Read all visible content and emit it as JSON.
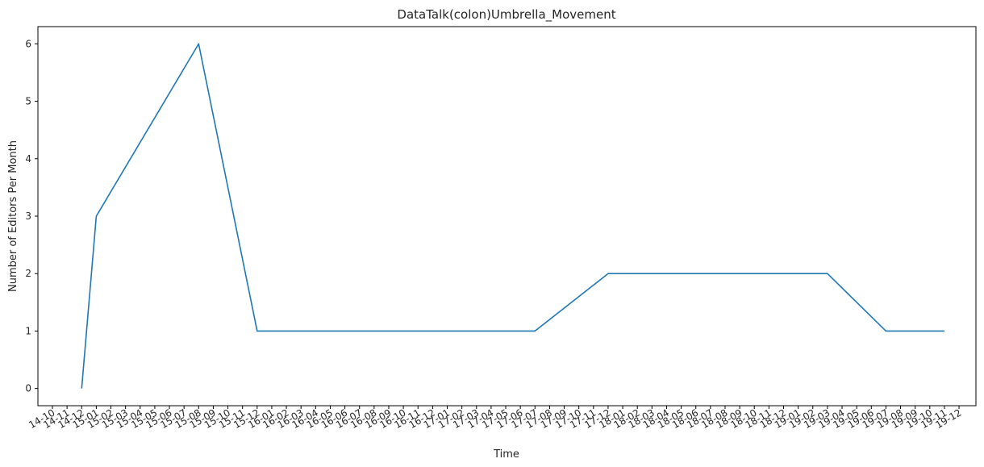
{
  "chart_data": {
    "type": "line",
    "title": "DataTalk(colon)Umbrella_Movement",
    "xlabel": "Time",
    "ylabel": "Number of Editors Per Month",
    "ylim": [
      -0.3,
      6.3
    ],
    "yticks": [
      0,
      1,
      2,
      3,
      4,
      5,
      6
    ],
    "x_tick_labels": [
      "14-10",
      "14-11",
      "14-12",
      "15-01",
      "15-02",
      "15-03",
      "15-04",
      "15-05",
      "15-06",
      "15-07",
      "15-08",
      "15-09",
      "15-10",
      "15-11",
      "15-12",
      "16-01",
      "16-02",
      "16-03",
      "16-04",
      "16-05",
      "16-06",
      "16-07",
      "16-08",
      "16-09",
      "16-10",
      "16-11",
      "16-12",
      "17-01",
      "17-02",
      "17-03",
      "17-04",
      "17-05",
      "17-06",
      "17-07",
      "17-08",
      "17-09",
      "17-10",
      "17-11",
      "17-12",
      "18-01",
      "18-02",
      "18-03",
      "18-04",
      "18-05",
      "18-06",
      "18-07",
      "18-08",
      "18-09",
      "18-10",
      "18-11",
      "18-12",
      "19-01",
      "19-02",
      "19-03",
      "19-04",
      "19-05",
      "19-06",
      "19-07",
      "19-08",
      "19-09",
      "19-10",
      "19-11",
      "19-12"
    ],
    "series": [
      {
        "name": "",
        "color": "#1f77b4",
        "points": [
          {
            "x": "14-12",
            "y": 0
          },
          {
            "x": "15-01",
            "y": 3
          },
          {
            "x": "15-08",
            "y": 6
          },
          {
            "x": "15-12",
            "y": 1
          },
          {
            "x": "17-07",
            "y": 1
          },
          {
            "x": "17-12",
            "y": 2
          },
          {
            "x": "19-03",
            "y": 2
          },
          {
            "x": "19-07",
            "y": 1
          },
          {
            "x": "19-11",
            "y": 1
          }
        ]
      }
    ],
    "grid": false,
    "legend": "none"
  }
}
